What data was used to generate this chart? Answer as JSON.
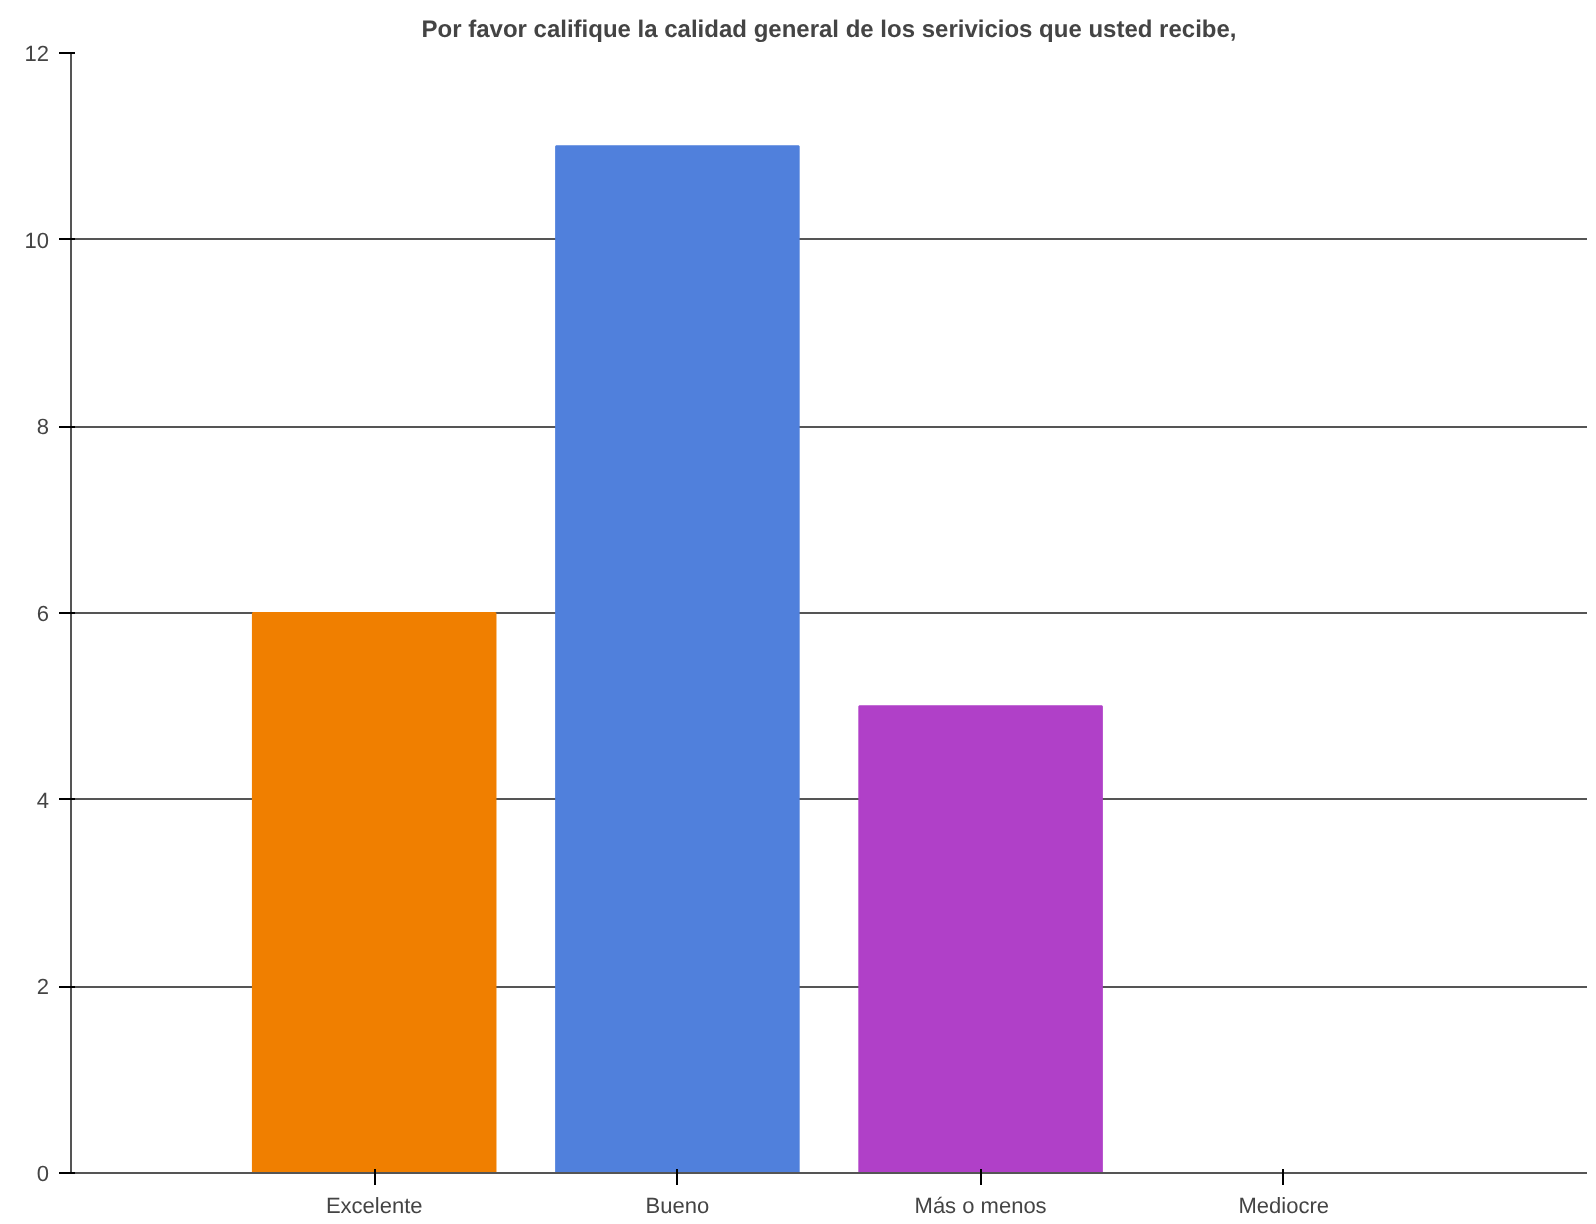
{
  "chart_data": {
    "type": "bar",
    "title": "Por favor califique la calidad general de los serivicios que usted recibe,",
    "categories": [
      "Excelente",
      "Bueno",
      "Más o menos",
      "Mediocre"
    ],
    "values": [
      6,
      11,
      5,
      0
    ],
    "colors": [
      "#f07f00",
      "#5080dc",
      "#b040c8",
      "#808080"
    ],
    "ylim": [
      0,
      12
    ],
    "yticks": [
      0,
      2,
      4,
      6,
      8,
      10,
      12
    ],
    "grid": "y"
  }
}
